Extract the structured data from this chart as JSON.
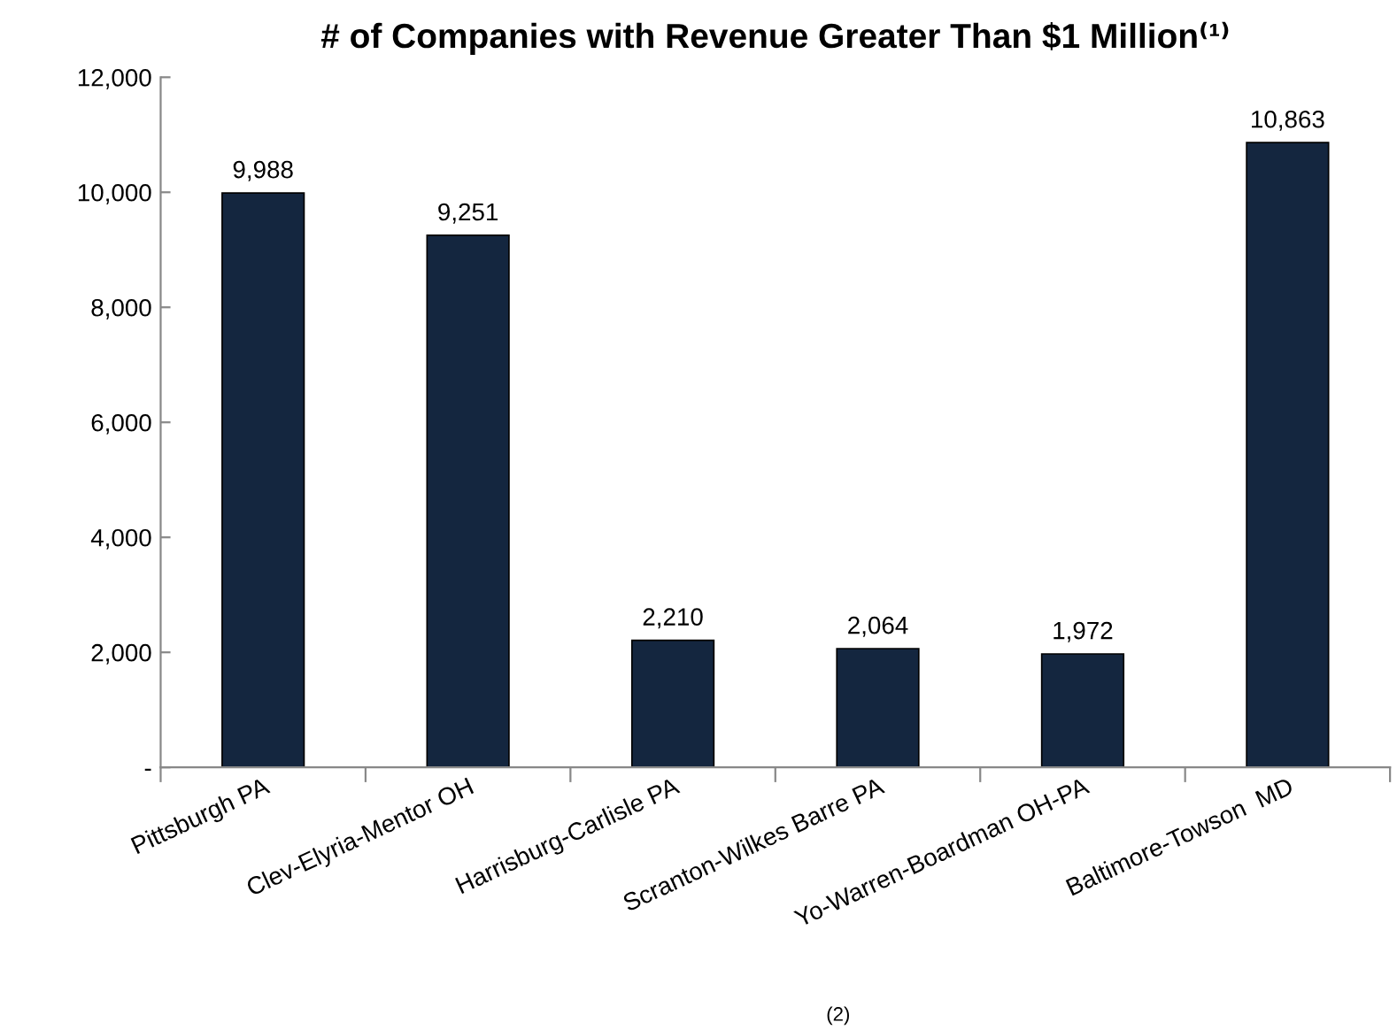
{
  "chart_data": {
    "type": "bar",
    "title": "# of Companies with Revenue Greater Than $1 Million⁽¹⁾",
    "categories": [
      "Pittsburgh PA",
      "Clev-Elyria-Mentor OH",
      "Harrisburg-Carlisle PA",
      "Scranton-Wilkes Barre PA",
      "Yo-Warren-Boardman OH-PA",
      "Baltimore-Towson  MD"
    ],
    "values": [
      9988,
      9251,
      2210,
      2064,
      1972,
      10863
    ],
    "color": "#14263f",
    "ylim": [
      0,
      12000
    ],
    "yticks": [
      {
        "value": 0,
        "label": "-"
      },
      {
        "value": 2000,
        "label": "2,000"
      },
      {
        "value": 4000,
        "label": "4,000"
      },
      {
        "value": 6000,
        "label": "6,000"
      },
      {
        "value": 8000,
        "label": "8,000"
      },
      {
        "value": 10000,
        "label": "10,000"
      },
      {
        "value": 12000,
        "label": "12,000"
      }
    ],
    "value_labels": [
      "9,988",
      "9,251",
      "2,210",
      "2,064",
      "1,972",
      "10,863"
    ],
    "grid": false,
    "legend": false,
    "annotations": [
      "(2)"
    ]
  }
}
